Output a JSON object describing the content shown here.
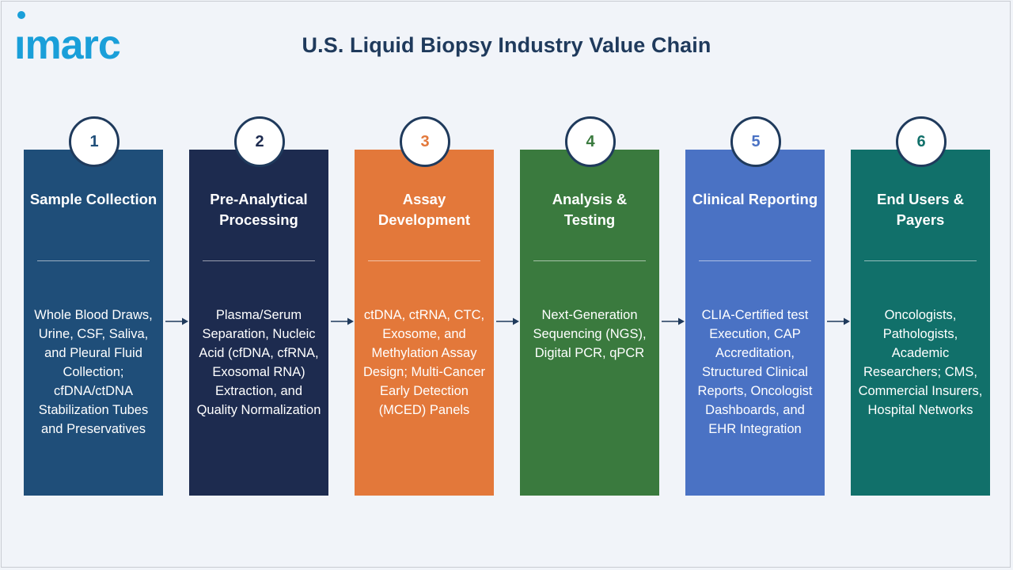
{
  "logo": {
    "text": "imarc",
    "color": "#1a9fd9"
  },
  "title": "U.S. Liquid Biopsy Industry Value Chain",
  "steps": [
    {
      "number": "1",
      "heading": "Sample Collection",
      "desc": "Whole Blood Draws, Urine, CSF, Saliva, and Pleural Fluid Collection; cfDNA/ctDNA Stabilization Tubes and Preservatives",
      "color": "#1f4e79",
      "number_color": "#1f4e79"
    },
    {
      "number": "2",
      "heading": "Pre-Analytical Processing",
      "desc": "Plasma/Serum Separation, Nucleic Acid (cfDNA, cfRNA, Exosomal RNA) Extraction, and Quality Normalization",
      "color": "#1d2b4f",
      "number_color": "#1d2b4f"
    },
    {
      "number": "3",
      "heading": "Assay Development",
      "desc": "ctDNA, ctRNA, CTC, Exosome, and Methylation Assay Design; Multi-Cancer Early Detection (MCED) Panels",
      "color": "#e3783a",
      "number_color": "#e3783a"
    },
    {
      "number": "4",
      "heading": "Analysis & Testing",
      "desc": "Next-Generation Sequencing (NGS), Digital PCR, qPCR",
      "color": "#3a7a3e",
      "number_color": "#3a7a3e"
    },
    {
      "number": "5",
      "heading": "Clinical Reporting",
      "desc": "CLIA-Certified test Execution, CAP Accreditation, Structured Clinical Reports, Oncologist Dashboards, and EHR Integration",
      "color": "#4a72c4",
      "number_color": "#4a72c4"
    },
    {
      "number": "6",
      "heading": "End Users & Payers",
      "desc": "Oncologists, Pathologists, Academic Researchers; CMS, Commercial Insurers, Hospital Networks",
      "color": "#11706a",
      "number_color": "#11706a"
    }
  ],
  "colors": {
    "arrow": "#1f3a5c",
    "badge_border": "#1f3a5c",
    "background": "#f1f4f9"
  }
}
